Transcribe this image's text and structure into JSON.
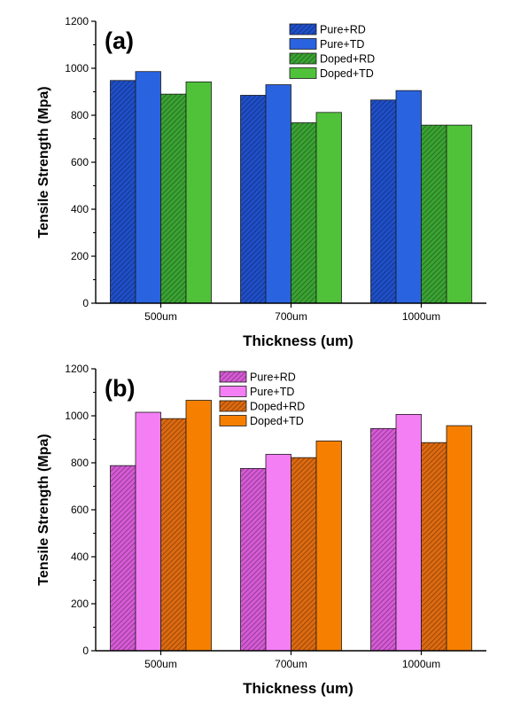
{
  "chart_data": [
    {
      "panel_label": "(a)",
      "type": "bar",
      "categories": [
        "500um",
        "700um",
        "1000um"
      ],
      "xlabel": "Thickness (um)",
      "ylabel": "Tensile Strength (Mpa)",
      "ylim": [
        0,
        1200
      ],
      "yticks": [
        "0",
        "200",
        "400",
        "600",
        "800",
        "1000",
        "1200"
      ],
      "legend_position": "top-right",
      "series": [
        {
          "name": "Pure+RD",
          "values": [
            948,
            885,
            865
          ],
          "color": "#1f4fc9",
          "pattern": "hatched"
        },
        {
          "name": "Pure+TD",
          "values": [
            986,
            930,
            905
          ],
          "color": "#2a63e0",
          "pattern": "solid"
        },
        {
          "name": "Doped+RD",
          "values": [
            890,
            768,
            758
          ],
          "color": "#3aa332",
          "pattern": "hatched"
        },
        {
          "name": "Doped+TD",
          "values": [
            942,
            812,
            758
          ],
          "color": "#4fc23a",
          "pattern": "solid"
        }
      ]
    },
    {
      "panel_label": "(b)",
      "type": "bar",
      "categories": [
        "500um",
        "700um",
        "1000um"
      ],
      "xlabel": "Thickness (um)",
      "ylabel": "Tensile Strength (Mpa)",
      "ylim": [
        0,
        1200
      ],
      "yticks": [
        "0",
        "200",
        "400",
        "600",
        "800",
        "1000",
        "1200"
      ],
      "legend_position": "top-center",
      "series": [
        {
          "name": "Pure+RD",
          "values": [
            788,
            776,
            946
          ],
          "color": "#d65ad6",
          "pattern": "hatched"
        },
        {
          "name": "Pure+TD",
          "values": [
            1015,
            836,
            1006
          ],
          "color": "#f47ef4",
          "pattern": "solid"
        },
        {
          "name": "Doped+RD",
          "values": [
            988,
            822,
            886
          ],
          "color": "#dd6a10",
          "pattern": "hatched"
        },
        {
          "name": "Doped+TD",
          "values": [
            1066,
            893,
            958
          ],
          "color": "#f77f00",
          "pattern": "solid"
        }
      ]
    }
  ]
}
